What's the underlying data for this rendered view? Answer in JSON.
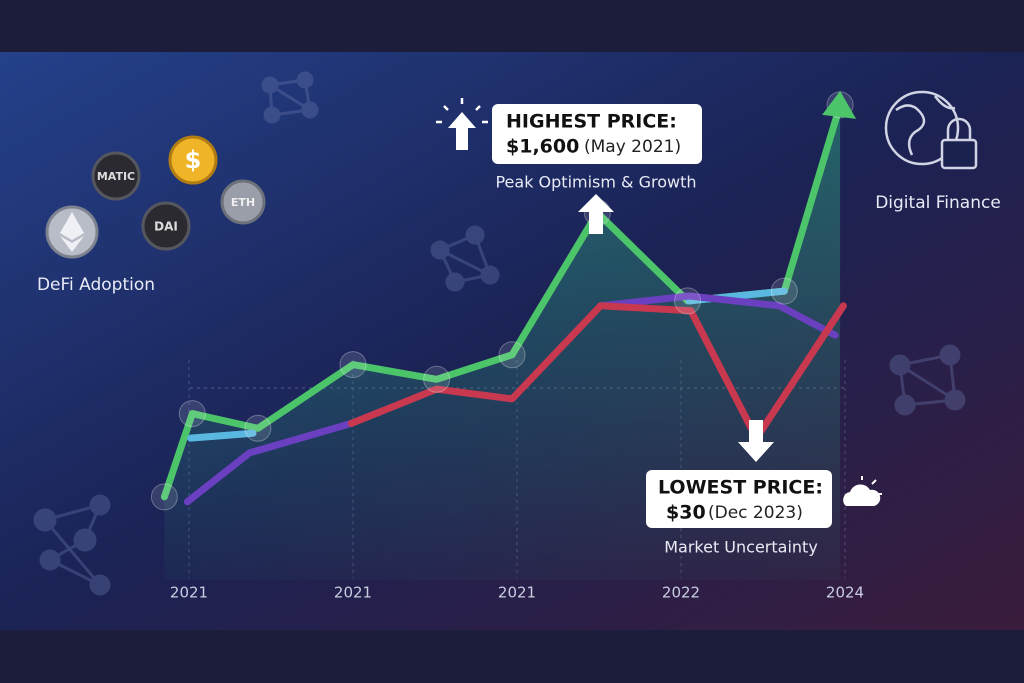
{
  "chart_data": {
    "type": "line",
    "categories": [
      "2021",
      "2021",
      "2021",
      "2022",
      "2024"
    ],
    "xlim": [
      -0.2,
      4.1
    ],
    "ylim": [
      0,
      100
    ],
    "series": [
      {
        "name": "Green",
        "color": "#4cc46a",
        "x": [
          -0.15,
          0.02,
          0.42,
          1.0,
          1.51,
          1.97,
          2.49,
          3.04,
          3.63,
          3.97
        ],
        "values": [
          19,
          36,
          33,
          46,
          43,
          48,
          77,
          59,
          61,
          99
        ]
      },
      {
        "name": "Blue",
        "color": "#5ab8e0",
        "x": [
          0.01,
          0.39,
          null,
          3.05,
          3.63
        ],
        "values": [
          31,
          32,
          null,
          59,
          61
        ]
      },
      {
        "name": "Purple",
        "color": "#6a3fc0",
        "x": [
          -0.01,
          0.37,
          0.99,
          null,
          2.51,
          3.05,
          3.6,
          3.94
        ],
        "values": [
          18,
          28,
          34,
          null,
          58,
          60,
          58,
          52
        ]
      },
      {
        "name": "Red",
        "color": "#c8384f",
        "x": [
          0.99,
          1.51,
          1.97,
          2.51,
          3.06,
          3.46,
          3.99
        ],
        "values": [
          34,
          41,
          39,
          58,
          57,
          31,
          58
        ]
      }
    ],
    "annotations": {
      "high_title": "HIGHEST PRICE:",
      "high_price": "$1,600",
      "high_date": "(May 2021)",
      "high_caption": "Peak Optimism & Growth",
      "low_title": "LOWEST PRICE:",
      "low_price": "$30",
      "low_date": "(Dec 2023)",
      "low_caption": "Market Uncertainty",
      "left_caption": "DeFi Adoption",
      "right_caption": "Digital Finance",
      "coins": [
        "MATIC",
        "$",
        "DAI",
        "ETH"
      ]
    }
  }
}
